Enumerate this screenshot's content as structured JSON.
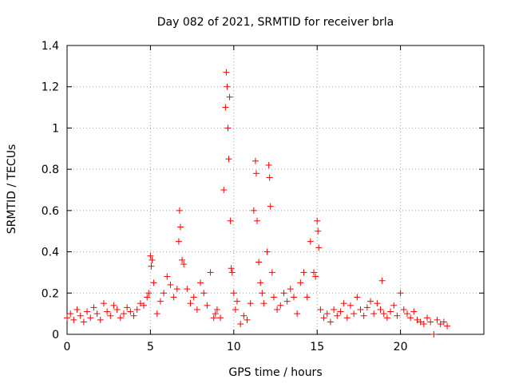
{
  "chart_data": {
    "type": "scatter",
    "title": "Day 082 of 2021, SRMTID for receiver brla",
    "xlabel": "GPS time / hours",
    "ylabel": "SRMTID / TECUs",
    "xlim": [
      0,
      25
    ],
    "ylim": [
      0,
      1.4
    ],
    "xticks": [
      0,
      5,
      10,
      15,
      20
    ],
    "xtick_labels": [
      "0",
      "5",
      "10",
      "15",
      "20"
    ],
    "yticks": [
      0,
      0.2,
      0.4,
      0.6,
      0.8,
      1,
      1.2,
      1.4
    ],
    "ytick_labels": [
      "0",
      "0.2",
      "0.4",
      "0.6",
      "0.8",
      "1",
      "1.2",
      "1.4"
    ],
    "grid": true,
    "marker": "+",
    "color": "#ff0000",
    "series": [
      {
        "name": "SRMTID",
        "x": [
          0.0,
          0.2,
          0.4,
          0.6,
          0.8,
          1.0,
          1.2,
          1.4,
          1.6,
          1.8,
          2.0,
          2.2,
          2.4,
          2.6,
          2.8,
          3.0,
          3.2,
          3.4,
          3.6,
          3.8,
          4.0,
          4.2,
          4.4,
          4.6,
          4.8,
          4.9,
          5.0,
          5.05,
          5.1,
          5.2,
          5.4,
          5.6,
          5.8,
          6.0,
          6.2,
          6.4,
          6.6,
          6.7,
          6.75,
          6.8,
          6.9,
          7.0,
          7.2,
          7.4,
          7.6,
          7.8,
          8.0,
          8.2,
          8.4,
          8.6,
          8.8,
          8.9,
          9.0,
          9.2,
          9.4,
          9.5,
          9.55,
          9.6,
          9.65,
          9.7,
          9.75,
          9.8,
          9.85,
          9.9,
          10.0,
          10.1,
          10.2,
          10.4,
          10.6,
          10.8,
          11.0,
          11.2,
          11.3,
          11.35,
          11.4,
          11.5,
          11.6,
          11.7,
          11.8,
          12.0,
          12.1,
          12.15,
          12.2,
          12.3,
          12.4,
          12.6,
          12.8,
          13.0,
          13.2,
          13.4,
          13.6,
          13.8,
          14.0,
          14.2,
          14.4,
          14.6,
          14.8,
          14.9,
          15.0,
          15.05,
          15.1,
          15.2,
          15.4,
          15.6,
          15.8,
          16.0,
          16.2,
          16.4,
          16.6,
          16.8,
          17.0,
          17.2,
          17.4,
          17.6,
          17.8,
          18.0,
          18.2,
          18.4,
          18.6,
          18.8,
          18.9,
          19.0,
          19.2,
          19.4,
          19.6,
          19.8,
          20.0,
          20.2,
          20.4,
          20.6,
          20.8,
          21.0,
          21.2,
          21.4,
          21.6,
          21.8,
          22.0,
          22.2,
          22.4,
          22.6,
          22.8
        ],
        "y": [
          0.08,
          0.1,
          0.07,
          0.12,
          0.09,
          0.06,
          0.11,
          0.08,
          0.13,
          0.1,
          0.07,
          0.15,
          0.11,
          0.09,
          0.14,
          0.12,
          0.08,
          0.1,
          0.13,
          0.11,
          0.09,
          0.12,
          0.15,
          0.14,
          0.18,
          0.2,
          0.38,
          0.33,
          0.36,
          0.25,
          0.1,
          0.16,
          0.2,
          0.28,
          0.24,
          0.18,
          0.22,
          0.45,
          0.6,
          0.52,
          0.36,
          0.34,
          0.22,
          0.15,
          0.18,
          0.12,
          0.25,
          0.2,
          0.14,
          0.3,
          0.08,
          0.1,
          0.12,
          0.08,
          0.7,
          1.1,
          1.27,
          1.2,
          1.0,
          0.85,
          1.15,
          0.55,
          0.32,
          0.3,
          0.2,
          0.12,
          0.16,
          0.05,
          0.09,
          0.07,
          0.15,
          0.6,
          0.84,
          0.78,
          0.55,
          0.35,
          0.25,
          0.2,
          0.15,
          0.4,
          0.82,
          0.76,
          0.62,
          0.3,
          0.18,
          0.12,
          0.14,
          0.2,
          0.16,
          0.22,
          0.18,
          0.1,
          0.25,
          0.3,
          0.18,
          0.45,
          0.3,
          0.28,
          0.55,
          0.5,
          0.42,
          0.12,
          0.08,
          0.1,
          0.06,
          0.12,
          0.09,
          0.11,
          0.15,
          0.08,
          0.14,
          0.1,
          0.18,
          0.12,
          0.09,
          0.13,
          0.16,
          0.1,
          0.15,
          0.12,
          0.26,
          0.1,
          0.08,
          0.11,
          0.14,
          0.09,
          0.2,
          0.12,
          0.1,
          0.08,
          0.11,
          0.07,
          0.06,
          0.05,
          0.08,
          0.06,
          0.0,
          0.07,
          0.05,
          0.06,
          0.04
        ]
      }
    ]
  }
}
